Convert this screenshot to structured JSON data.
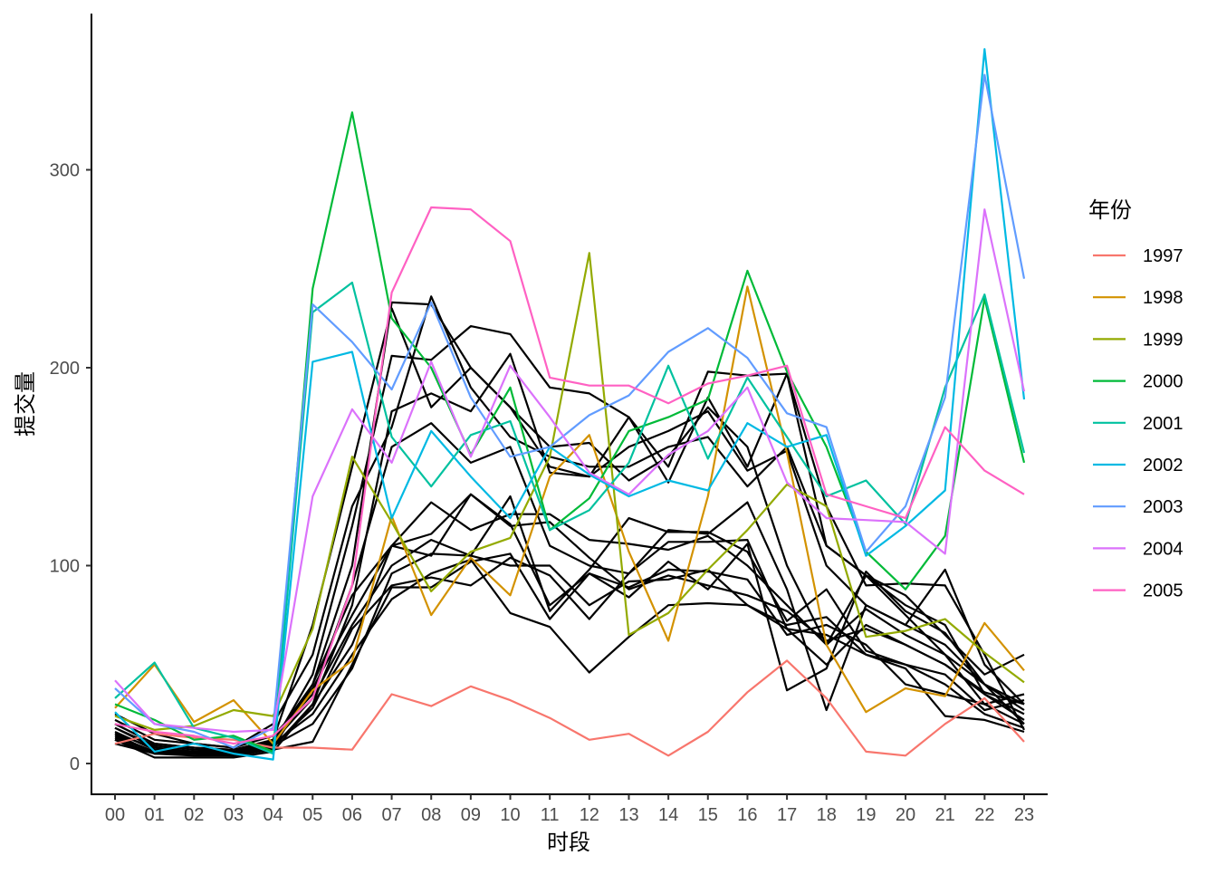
{
  "chart_data": {
    "type": "line",
    "xlabel": "时段",
    "ylabel": "提交量",
    "x": [
      "00",
      "01",
      "02",
      "03",
      "04",
      "05",
      "06",
      "07",
      "08",
      "09",
      "10",
      "11",
      "12",
      "13",
      "14",
      "15",
      "16",
      "17",
      "18",
      "19",
      "20",
      "21",
      "22",
      "23"
    ],
    "y_ticks": [
      "0",
      "100",
      "200",
      "300"
    ],
    "ylim": [
      -14,
      394
    ],
    "grid": false,
    "legend": {
      "title": "年份",
      "position": "right"
    },
    "series": [
      {
        "name": "1997",
        "color": "#F8766D",
        "values": [
          10,
          15,
          13,
          12,
          8,
          8,
          7,
          35,
          29,
          39,
          32,
          23,
          12,
          15,
          4,
          16,
          36,
          52,
          33,
          6,
          4,
          20,
          33,
          11
        ]
      },
      {
        "name": "1998",
        "color": "#D39200",
        "values": [
          28,
          50,
          21,
          32,
          10,
          37,
          52,
          125,
          75,
          104,
          85,
          145,
          166,
          107,
          62,
          135,
          241,
          157,
          60,
          26,
          38,
          34,
          71,
          47
        ]
      },
      {
        "name": "1999",
        "color": "#93AA00",
        "values": [
          24,
          17,
          19,
          27,
          24,
          68,
          155,
          122,
          87,
          107,
          114,
          155,
          258,
          65,
          76,
          98,
          118,
          141,
          130,
          64,
          67,
          73,
          56,
          41
        ]
      },
      {
        "name": "2000",
        "color": "#00BA38",
        "values": [
          30,
          22,
          12,
          14,
          6,
          240,
          329,
          225,
          200,
          156,
          190,
          118,
          134,
          168,
          175,
          184,
          249,
          198,
          160,
          107,
          88,
          115,
          235,
          152
        ]
      },
      {
        "name": "2001",
        "color": "#00C19F",
        "values": [
          33,
          51,
          18,
          13,
          5,
          228,
          243,
          165,
          140,
          166,
          173,
          118,
          128,
          152,
          201,
          154,
          195,
          165,
          135,
          143,
          121,
          190,
          237,
          157
        ]
      },
      {
        "name": "2002",
        "color": "#00B9E3",
        "values": [
          26,
          6,
          10,
          5,
          2,
          203,
          208,
          124,
          168,
          145,
          124,
          160,
          146,
          135,
          143,
          138,
          172,
          160,
          166,
          105,
          120,
          138,
          361,
          184
        ]
      },
      {
        "name": "2003",
        "color": "#619CFF",
        "values": [
          38,
          20,
          16,
          8,
          18,
          232,
          213,
          189,
          233,
          185,
          155,
          160,
          176,
          186,
          208,
          220,
          205,
          177,
          170,
          107,
          130,
          185,
          348,
          245
        ]
      },
      {
        "name": "2004",
        "color": "#DB72FB",
        "values": [
          42,
          20,
          18,
          16,
          17,
          135,
          179,
          152,
          203,
          155,
          201,
          175,
          147,
          136,
          156,
          168,
          190,
          142,
          124,
          123,
          122,
          106,
          280,
          188
        ]
      },
      {
        "name": "2005",
        "color": "#FF61C3",
        "values": [
          20,
          16,
          14,
          10,
          14,
          33,
          90,
          238,
          281,
          280,
          264,
          195,
          191,
          191,
          182,
          192,
          196,
          201,
          136,
          130,
          124,
          170,
          148,
          136
        ]
      }
    ],
    "other_series_color": "#000000",
    "other_series": [
      [
        15,
        5,
        5,
        5,
        8,
        40,
        100,
        233,
        232,
        200,
        180,
        150,
        145,
        175,
        142,
        185,
        150,
        197,
        110,
        95,
        75,
        55,
        40,
        30
      ],
      [
        18,
        8,
        6,
        6,
        10,
        45,
        120,
        206,
        204,
        221,
        217,
        190,
        187,
        175,
        150,
        198,
        196,
        197,
        130,
        90,
        91,
        90,
        55,
        17
      ],
      [
        20,
        10,
        8,
        7,
        12,
        70,
        150,
        230,
        180,
        200,
        180,
        160,
        162,
        143,
        155,
        180,
        160,
        100,
        60,
        95,
        80,
        70,
        35,
        25
      ],
      [
        12,
        3,
        3,
        3,
        6,
        30,
        80,
        178,
        187,
        178,
        207,
        147,
        145,
        160,
        168,
        178,
        148,
        158,
        100,
        80,
        70,
        98,
        50,
        30
      ],
      [
        25,
        15,
        10,
        8,
        20,
        55,
        130,
        170,
        236,
        190,
        165,
        155,
        150,
        150,
        160,
        165,
        140,
        160,
        110,
        95,
        85,
        65,
        45,
        55
      ],
      [
        22,
        12,
        10,
        8,
        14,
        35,
        90,
        160,
        172,
        152,
        160,
        110,
        100,
        96,
        118,
        116,
        132,
        88,
        27,
        80,
        70,
        60,
        40,
        20
      ],
      [
        15,
        8,
        6,
        5,
        12,
        38,
        75,
        110,
        132,
        118,
        126,
        126,
        113,
        111,
        108,
        115,
        100,
        80,
        60,
        78,
        65,
        55,
        30,
        35
      ],
      [
        10,
        5,
        5,
        4,
        8,
        30,
        60,
        110,
        105,
        136,
        121,
        80,
        96,
        84,
        102,
        88,
        111,
        37,
        48,
        97,
        77,
        66,
        40,
        27
      ],
      [
        14,
        6,
        6,
        5,
        9,
        28,
        68,
        90,
        94,
        90,
        104,
        95,
        73,
        96,
        112,
        112,
        113,
        68,
        50,
        70,
        60,
        50,
        35,
        22
      ],
      [
        16,
        7,
        6,
        5,
        10,
        25,
        55,
        83,
        96,
        103,
        76,
        69,
        46,
        64,
        80,
        81,
        80,
        68,
        65,
        55,
        50,
        40,
        25,
        18
      ],
      [
        12,
        5,
        4,
        4,
        7,
        11,
        50,
        89,
        89,
        102,
        106,
        73,
        96,
        89,
        98,
        97,
        93,
        65,
        70,
        60,
        40,
        35,
        30,
        20
      ],
      [
        18,
        9,
        7,
        6,
        12,
        40,
        85,
        110,
        116,
        136,
        120,
        122,
        104,
        88,
        95,
        90,
        85,
        77,
        62,
        68,
        60,
        50,
        36,
        30
      ],
      [
        20,
        10,
        8,
        6,
        11,
        33,
        70,
        100,
        113,
        105,
        100,
        100,
        80,
        92,
        93,
        98,
        80,
        70,
        74,
        55,
        48,
        24,
        22,
        16
      ],
      [
        13,
        6,
        5,
        5,
        9,
        20,
        48,
        96,
        106,
        105,
        135,
        77,
        98,
        124,
        117,
        117,
        107,
        72,
        88,
        57,
        50,
        45,
        27,
        32
      ]
    ]
  }
}
